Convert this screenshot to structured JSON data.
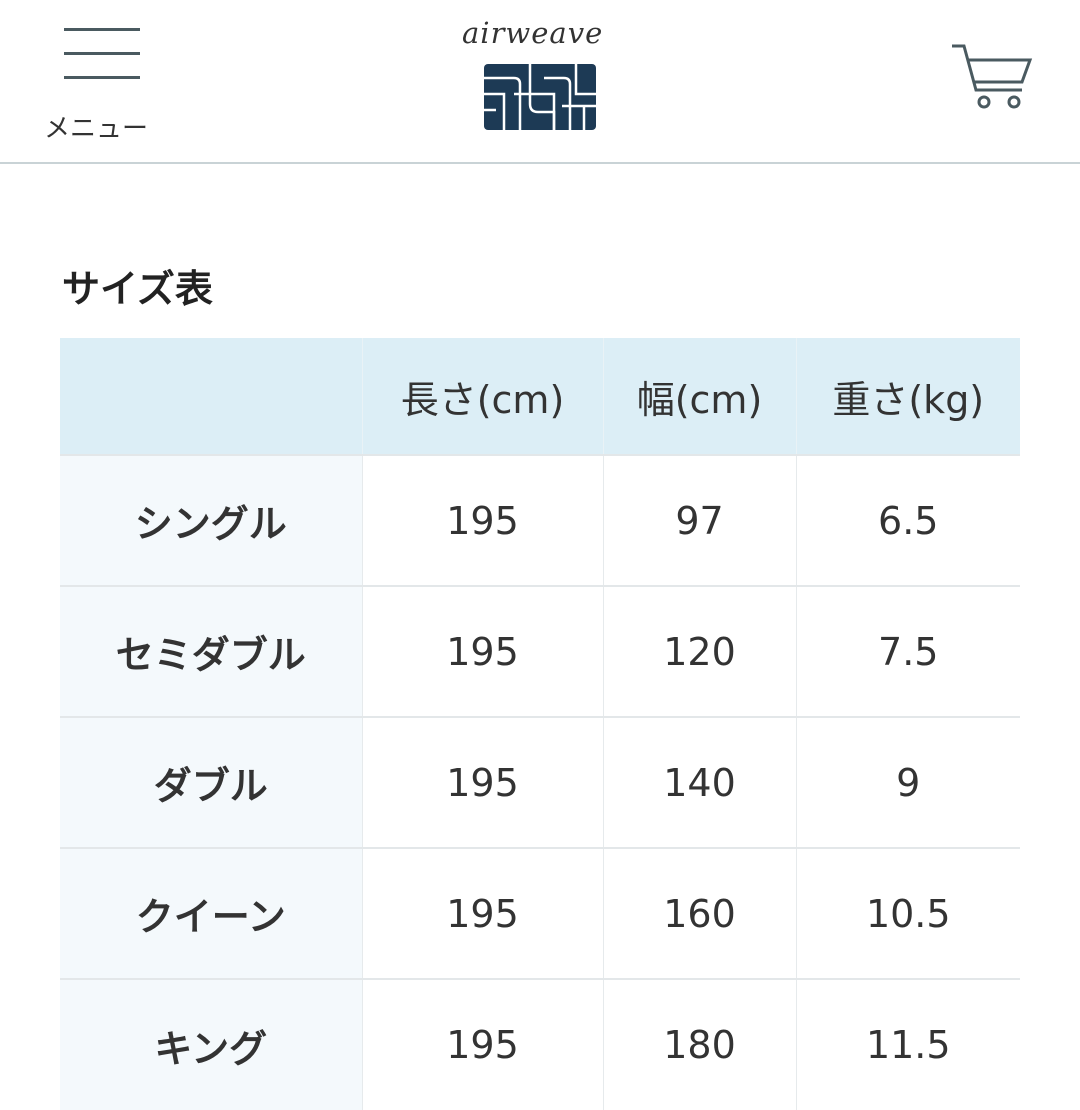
{
  "header": {
    "menu_label": "メニュー",
    "brand": "airweave",
    "brand_color": "#1d3a55"
  },
  "page": {
    "title": "サイズ表"
  },
  "table": {
    "columns": [
      "",
      "長さ(cm)",
      "幅(cm)",
      "重さ(kg)"
    ],
    "rows": [
      [
        "シングル",
        "195",
        "97",
        "6.5"
      ],
      [
        "セミダブル",
        "195",
        "120",
        "7.5"
      ],
      [
        "ダブル",
        "195",
        "140",
        "9"
      ],
      [
        "クイーン",
        "195",
        "160",
        "10.5"
      ],
      [
        "キング",
        "195",
        "180",
        "11.5"
      ]
    ]
  }
}
